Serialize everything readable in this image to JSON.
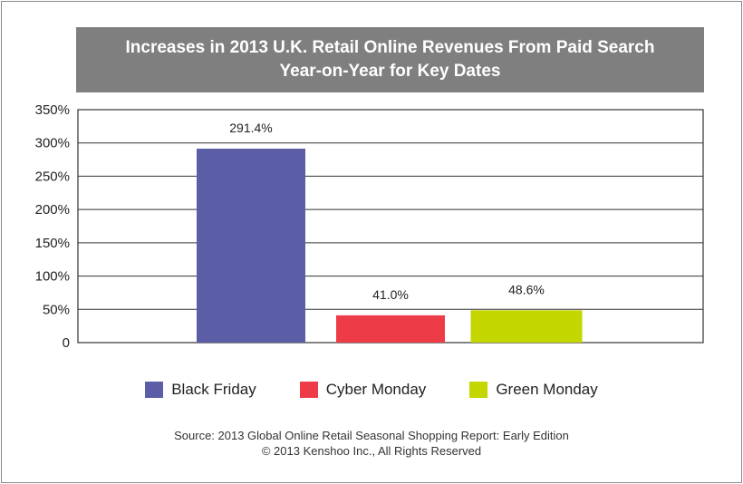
{
  "chart_data": {
    "type": "bar",
    "title_lines": [
      "Increases in 2013 U.K. Retail Online Revenues From Paid Search",
      "Year-on-Year for Key Dates"
    ],
    "categories": [
      "Black Friday",
      "Cyber Monday",
      "Green Monday"
    ],
    "values": [
      291.4,
      41.0,
      48.6
    ],
    "data_labels": [
      "291.4%",
      "41.0%",
      "48.6%"
    ],
    "colors": [
      "#5b5ea6",
      "#ee3b48",
      "#c3d600"
    ],
    "ylim": [
      0,
      350
    ],
    "yticks": [
      {
        "value": 0,
        "label": "0"
      },
      {
        "value": 50,
        "label": "50%"
      },
      {
        "value": 100,
        "label": "100%"
      },
      {
        "value": 150,
        "label": "150%"
      },
      {
        "value": 200,
        "label": "200%"
      },
      {
        "value": 250,
        "label": "250%"
      },
      {
        "value": 300,
        "label": "300%"
      },
      {
        "value": 350,
        "label": "350%"
      }
    ],
    "grid": true,
    "legend_position": "bottom"
  },
  "footer": {
    "source": "Source: 2013 Global Online Retail Seasonal Shopping Report: Early Edition",
    "copyright": "© 2013 Kenshoo Inc., All Rights Reserved"
  }
}
